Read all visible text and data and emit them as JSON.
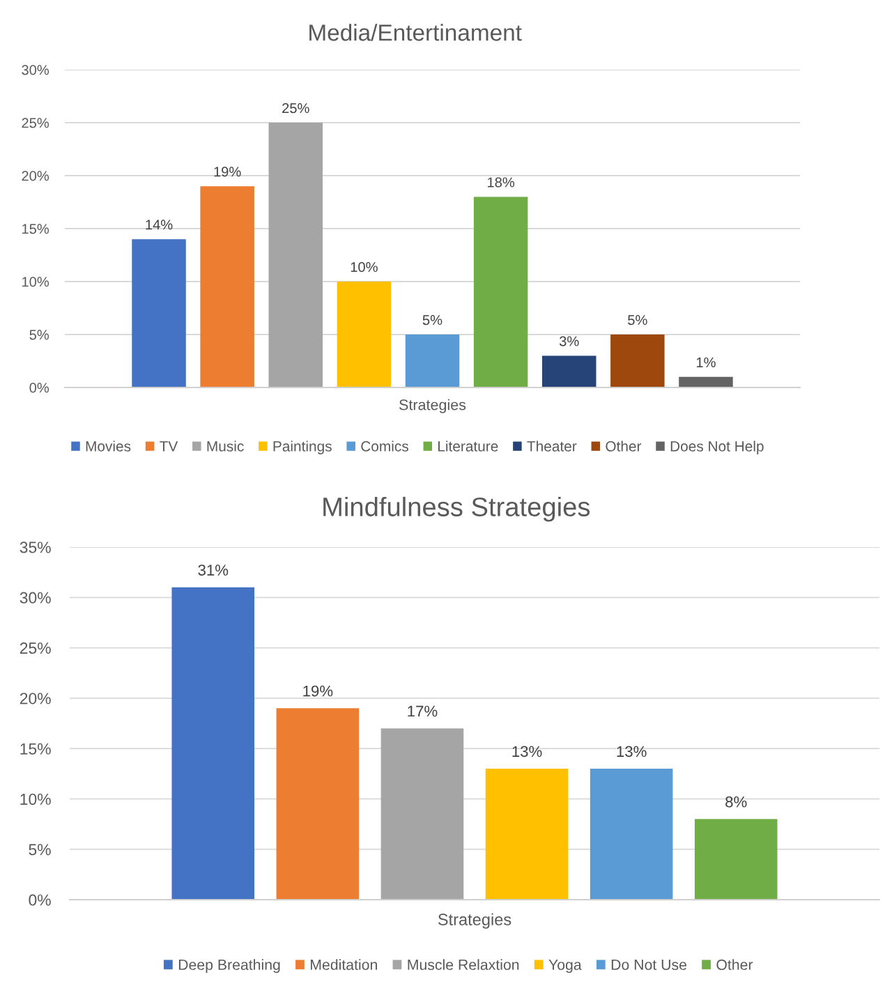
{
  "chart_data": [
    {
      "type": "bar",
      "title": "Media/Entertinament",
      "categories": [
        "Strategies"
      ],
      "series": [
        {
          "name": "Movies",
          "color": "#4472c4",
          "values": [
            14
          ],
          "value_labels": [
            "14%"
          ]
        },
        {
          "name": "TV",
          "color": "#ed7d31",
          "values": [
            19
          ],
          "value_labels": [
            "19%"
          ]
        },
        {
          "name": "Music",
          "color": "#a5a5a5",
          "values": [
            25
          ],
          "value_labels": [
            "25%"
          ]
        },
        {
          "name": "Paintings",
          "color": "#ffc000",
          "values": [
            10
          ],
          "value_labels": [
            "10%"
          ]
        },
        {
          "name": "Comics",
          "color": "#5b9bd5",
          "values": [
            5
          ],
          "value_labels": [
            "5%"
          ]
        },
        {
          "name": "Literature",
          "color": "#70ad47",
          "values": [
            18
          ],
          "value_labels": [
            "18%"
          ]
        },
        {
          "name": "Theater",
          "color": "#264478",
          "values": [
            3
          ],
          "value_labels": [
            "3%"
          ]
        },
        {
          "name": "Other",
          "color": "#9e480e",
          "values": [
            5
          ],
          "value_labels": [
            "5%"
          ]
        },
        {
          "name": "Does Not Help",
          "color": "#636363",
          "values": [
            1
          ],
          "value_labels": [
            "1%"
          ]
        }
      ],
      "ylim": [
        0,
        30
      ],
      "yticks": [
        {
          "value": 0,
          "label": "0%"
        },
        {
          "value": 5,
          "label": "5%"
        },
        {
          "value": 10,
          "label": "10%"
        },
        {
          "value": 15,
          "label": "15%"
        },
        {
          "value": 20,
          "label": "20%"
        },
        {
          "value": 25,
          "label": "25%"
        },
        {
          "value": 30,
          "label": "30%"
        }
      ],
      "grid": "y",
      "legend": "bottom"
    },
    {
      "type": "bar",
      "title": "Mindfulness Strategies",
      "categories": [
        "Strategies"
      ],
      "series": [
        {
          "name": "Deep Breathing",
          "color": "#4472c4",
          "values": [
            31
          ],
          "value_labels": [
            "31%"
          ]
        },
        {
          "name": "Meditation",
          "color": "#ed7d31",
          "values": [
            19
          ],
          "value_labels": [
            "19%"
          ]
        },
        {
          "name": "Muscle Relaxtion",
          "color": "#a5a5a5",
          "values": [
            17
          ],
          "value_labels": [
            "17%"
          ]
        },
        {
          "name": "Yoga",
          "color": "#ffc000",
          "values": [
            13
          ],
          "value_labels": [
            "13%"
          ]
        },
        {
          "name": "Do Not Use",
          "color": "#5b9bd5",
          "values": [
            13
          ],
          "value_labels": [
            "13%"
          ]
        },
        {
          "name": "Other",
          "color": "#70ad47",
          "values": [
            8
          ],
          "value_labels": [
            "8%"
          ]
        }
      ],
      "ylim": [
        0,
        35
      ],
      "yticks": [
        {
          "value": 0,
          "label": "0%"
        },
        {
          "value": 5,
          "label": "5%"
        },
        {
          "value": 10,
          "label": "10%"
        },
        {
          "value": 15,
          "label": "15%"
        },
        {
          "value": 20,
          "label": "20%"
        },
        {
          "value": 25,
          "label": "25%"
        },
        {
          "value": 30,
          "label": "30%"
        },
        {
          "value": 35,
          "label": "35%"
        }
      ],
      "grid": "y",
      "legend": "bottom"
    }
  ]
}
